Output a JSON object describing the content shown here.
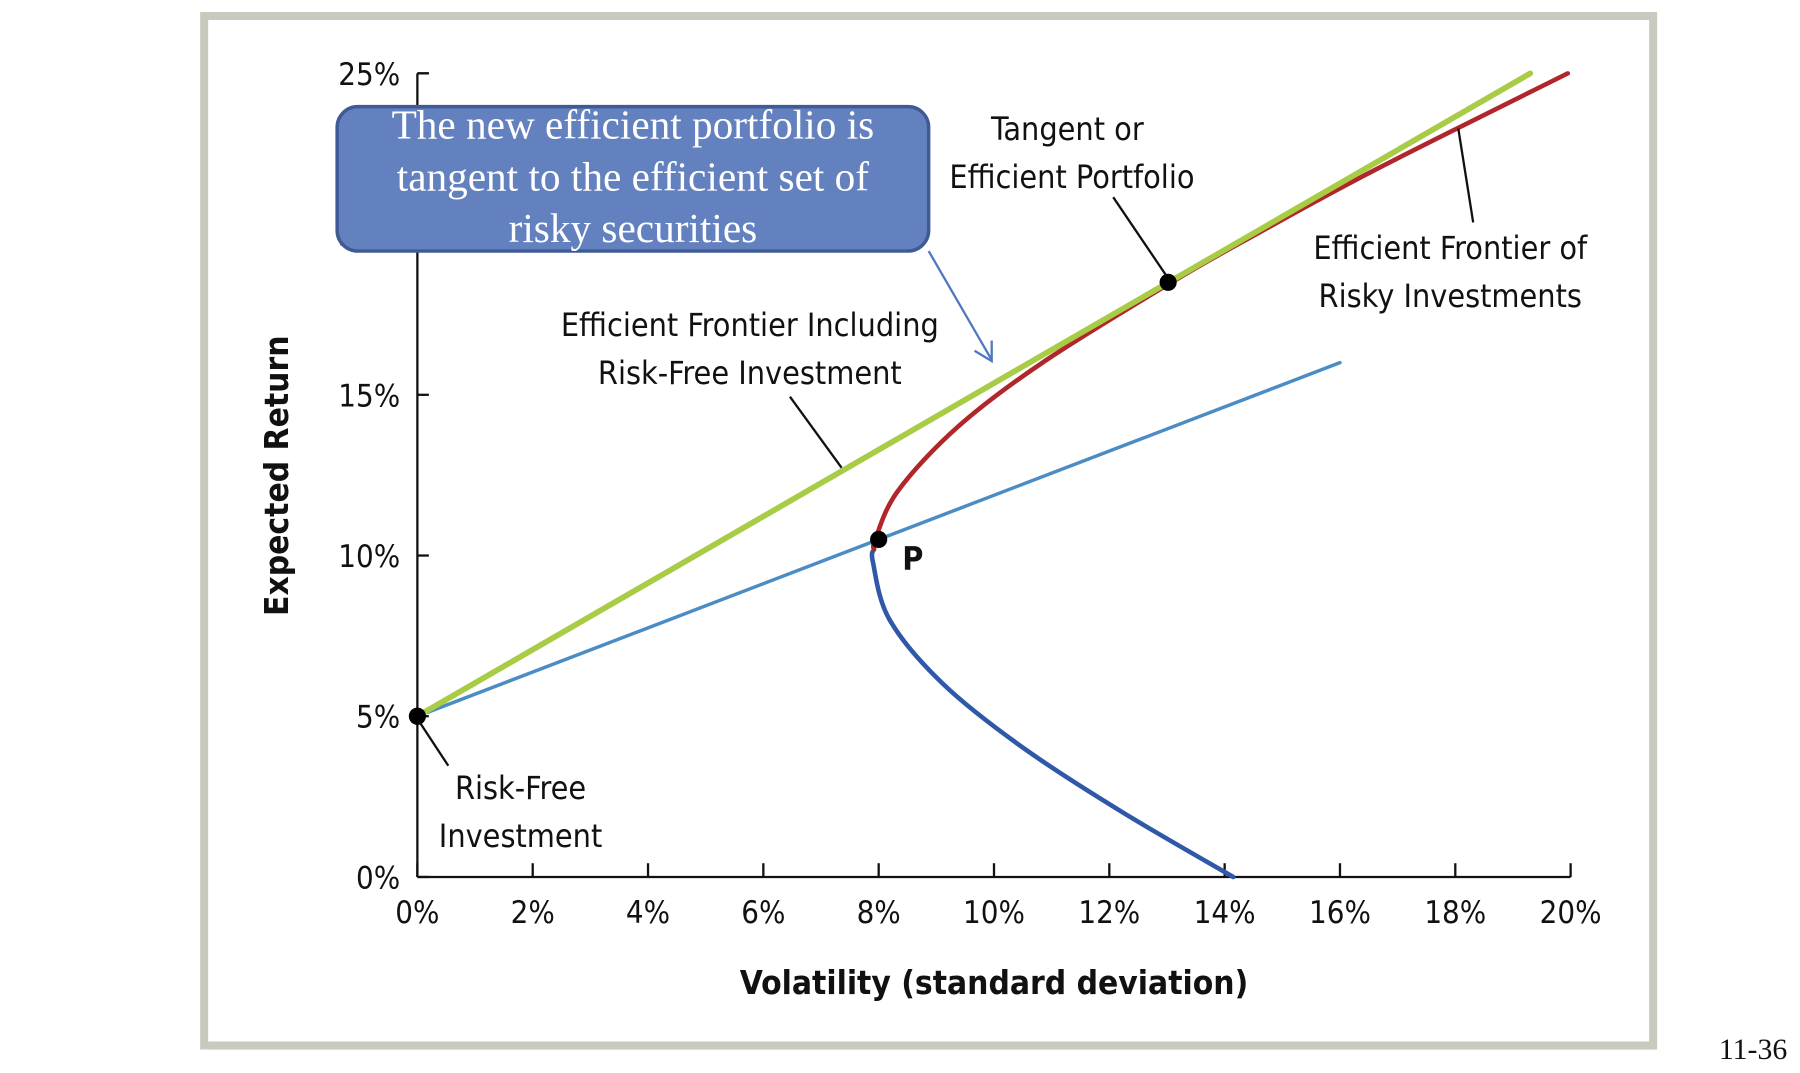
{
  "page_number": "11-36",
  "callout": {
    "lines": [
      "The new efficient portfolio is",
      "tangent to the efficient set of",
      "risky securities"
    ],
    "fill": "#6381BE",
    "border": "#3F5A94"
  },
  "annotations": {
    "tangent": [
      "Tangent or",
      "Efficient Portfolio"
    ],
    "frontier_risky": [
      "Efficient Frontier of",
      "Risky Investments"
    ],
    "frontier_rf": [
      "Efficient Frontier Including",
      "Risk-Free Investment"
    ],
    "risk_free": [
      "Risk-Free",
      "Investment"
    ],
    "p_label": "P"
  },
  "chart_data": {
    "type": "line",
    "title": "",
    "xlabel": "Volatility (standard deviation)",
    "ylabel": "Expected Return",
    "xlim": [
      0,
      20
    ],
    "ylim": [
      0,
      25
    ],
    "x_ticks": [
      "0%",
      "2%",
      "4%",
      "6%",
      "8%",
      "10%",
      "12%",
      "14%",
      "16%",
      "18%",
      "20%"
    ],
    "y_ticks": [
      "0%",
      "5%",
      "10%",
      "15%",
      "20%",
      "25%"
    ],
    "grid": false,
    "series": [
      {
        "color": "#2F58A8",
        "points": [
          [
            14.15,
            0
          ],
          [
            12.24,
            2
          ],
          [
            10.52,
            4
          ],
          [
            9.12,
            6
          ],
          [
            8.19,
            8
          ],
          [
            7.9,
            9.8
          ],
          [
            7.92,
            10.2
          ]
        ]
      },
      {
        "color": "#B0262A",
        "points": [
          [
            7.92,
            10.2
          ],
          [
            7.94,
            10.5
          ],
          [
            8.33,
            12
          ],
          [
            9.37,
            14
          ],
          [
            10.84,
            16
          ],
          [
            13.08,
            18.5
          ],
          [
            14.55,
            20
          ],
          [
            16.61,
            22
          ],
          [
            19.95,
            25
          ]
        ]
      },
      {
        "color": "#4A8CC4",
        "points": [
          [
            0,
            5
          ],
          [
            16,
            16
          ]
        ]
      },
      {
        "color": "#A8CC45",
        "points": [
          [
            0,
            5
          ],
          [
            19.3,
            25
          ]
        ]
      }
    ],
    "marked_points": [
      {
        "label": "Risk-Free Investment",
        "x": 0,
        "y": 5
      },
      {
        "label": "P",
        "x": 8,
        "y": 10.5
      },
      {
        "label": "Tangent or Efficient Portfolio",
        "x": 13.02,
        "y": 18.5
      }
    ]
  }
}
